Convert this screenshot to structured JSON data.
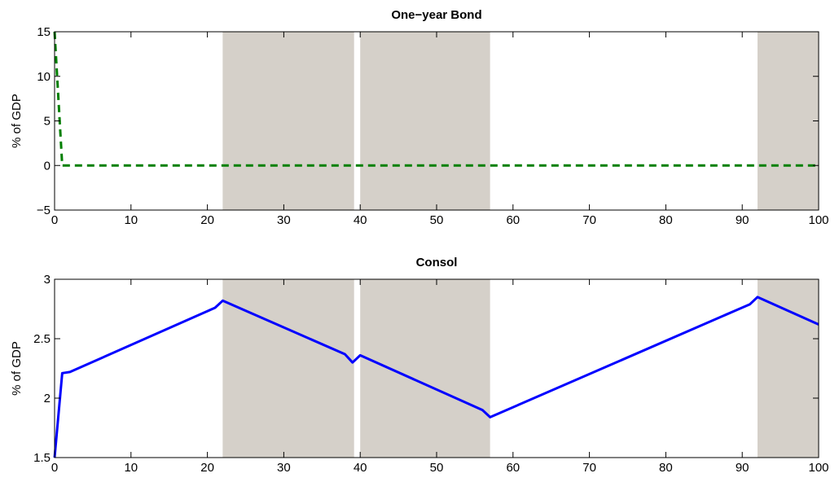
{
  "chart_data": [
    {
      "type": "line",
      "title": "One−year Bond",
      "xlabel": "",
      "ylabel": "% of GDP",
      "xlim": [
        0,
        100
      ],
      "ylim": [
        -5,
        15
      ],
      "xticks": [
        "0",
        "10",
        "20",
        "30",
        "40",
        "50",
        "60",
        "70",
        "80",
        "90",
        "100"
      ],
      "yticks": [
        "−5",
        "0",
        "5",
        "10",
        "15"
      ],
      "grid": false,
      "shaded_regions": [
        [
          22,
          39.2
        ],
        [
          40,
          57
        ],
        [
          92,
          100
        ]
      ],
      "shade_color": "#d5d0c9",
      "series": [
        {
          "style": "dashed",
          "color": "#007f00",
          "x": [
            0,
            1,
            2,
            100
          ],
          "y": [
            15,
            0,
            0,
            0
          ]
        }
      ]
    },
    {
      "type": "line",
      "title": "Consol",
      "xlabel": "",
      "ylabel": "% of GDP",
      "xlim": [
        0,
        100
      ],
      "ylim": [
        1.5,
        3
      ],
      "xticks": [
        "0",
        "10",
        "20",
        "30",
        "40",
        "50",
        "60",
        "70",
        "80",
        "90",
        "100"
      ],
      "yticks": [
        "1.5",
        "2",
        "2.5",
        "3"
      ],
      "grid": false,
      "shaded_regions": [
        [
          22,
          39.2
        ],
        [
          40,
          57
        ],
        [
          92,
          100
        ]
      ],
      "shade_color": "#d5d0c9",
      "series": [
        {
          "style": "solid",
          "color": "#0000ff",
          "x": [
            0,
            1,
            2,
            21,
            22,
            38,
            39,
            40,
            56,
            57,
            91,
            92,
            100
          ],
          "y": [
            1.5,
            2.21,
            2.22,
            2.76,
            2.82,
            2.37,
            2.3,
            2.36,
            1.9,
            1.84,
            2.79,
            2.85,
            2.62
          ]
        }
      ]
    }
  ]
}
